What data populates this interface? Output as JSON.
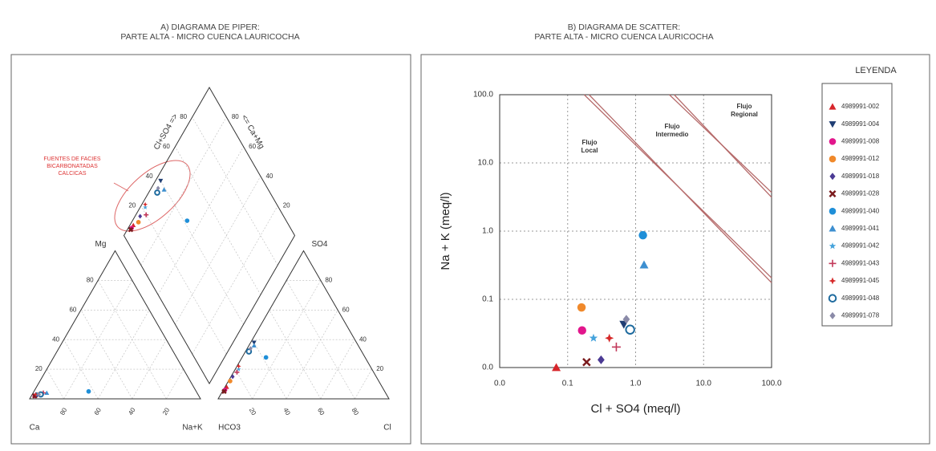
{
  "legend": {
    "title": "LEYENDA",
    "entries": [
      {
        "name": "4989991-002",
        "color": "#d7262b",
        "marker": "triangle"
      },
      {
        "name": "4989991-004",
        "color": "#1f3d73",
        "marker": "triangle-down"
      },
      {
        "name": "4989991-008",
        "color": "#e2168c",
        "marker": "circle"
      },
      {
        "name": "4989991-012",
        "color": "#f0892b",
        "marker": "circle"
      },
      {
        "name": "4989991-018",
        "color": "#4b3a94",
        "marker": "diamond"
      },
      {
        "name": "4989991-028",
        "color": "#7b1b1d",
        "marker": "x"
      },
      {
        "name": "4989991-040",
        "color": "#1f8fd8",
        "marker": "circle"
      },
      {
        "name": "4989991-041",
        "color": "#3d8fd0",
        "marker": "triangle"
      },
      {
        "name": "4989991-042",
        "color": "#45a3dc",
        "marker": "star"
      },
      {
        "name": "4989991-043",
        "color": "#c2385a",
        "marker": "plus"
      },
      {
        "name": "4989991-045",
        "color": "#d62a2a",
        "marker": "star4"
      },
      {
        "name": "4989991-048",
        "color": "#1d6a9e",
        "marker": "open-circle"
      },
      {
        "name": "4989991-078",
        "color": "#8a8aa8",
        "marker": "diamond"
      }
    ]
  },
  "chart_data": [
    {
      "type": "piper",
      "title": [
        "A)  DIAGRAMA DE PIPER:",
        "PARTE ALTA - MICRO CUENCA LAURICOCHA"
      ],
      "labels": {
        "ca": "Ca",
        "nak": "Na+K",
        "mg": "Mg",
        "hco3": "HCO3",
        "cl": "Cl",
        "so4": "SO4",
        "clso4": "Cl+SO4 =>",
        "camg": "<= Ca+Mg"
      },
      "annotation": [
        "FUENTES DE FACIES",
        "BICARBONATADAS",
        "CALCICAS"
      ],
      "ticks": [
        20,
        40,
        60,
        80
      ],
      "grid": true,
      "mg": [
        2,
        3,
        2,
        3,
        2,
        2,
        5,
        4,
        3,
        4,
        3,
        3,
        3
      ],
      "nak": [
        2,
        3,
        2,
        4,
        3,
        2,
        32,
        8,
        3,
        6,
        2,
        5,
        4
      ],
      "so4": [
        8,
        38,
        6,
        12,
        15,
        5,
        28,
        36,
        20,
        18,
        22,
        32,
        34
      ],
      "cl": [
        1,
        2,
        1,
        1,
        1,
        1,
        14,
        3,
        2,
        2,
        1,
        2,
        2
      ]
    },
    {
      "type": "scatter",
      "title": [
        "B)  DIAGRAMA DE SCATTER:",
        "PARTE ALTA - MICRO CUENCA LAURICOCHA"
      ],
      "x_label": "Cl + SO4 (meq/l)",
      "y_label": "Na + K (meq/l)",
      "log_x": true,
      "log_y": true,
      "grid": true,
      "xlim": [
        0.01,
        100
      ],
      "ylim": [
        0.01,
        100
      ],
      "xticks": [
        {
          "value": 0.01,
          "label": "0.0"
        },
        0.1,
        {
          "value": 1,
          "label": "1.0"
        },
        {
          "value": 10,
          "label": "10.0"
        },
        {
          "value": 100,
          "label": "100.0"
        }
      ],
      "yticks": [
        {
          "value": 0.01,
          "label": "0.0"
        },
        0.1,
        {
          "value": 1,
          "label": "1.0"
        },
        {
          "value": 10,
          "label": "10.0"
        },
        {
          "value": 100,
          "label": "100.0"
        }
      ],
      "x": [
        0.068,
        0.67,
        0.163,
        0.16,
        0.31,
        0.19,
        1.28,
        1.33,
        0.24,
        0.52,
        0.41,
        0.83,
        0.73
      ],
      "y": [
        0.01,
        0.043,
        0.035,
        0.076,
        0.013,
        0.012,
        0.87,
        0.32,
        0.027,
        0.02,
        0.027,
        0.036,
        0.051
      ],
      "boundaries": [
        {
          "x": [
            0.19,
            100
          ],
          "y": [
            100,
            0.19
          ]
        },
        {
          "x": [
            3.4,
            100
          ],
          "y": [
            100,
            3.4
          ]
        }
      ],
      "boundary_color": "#b56a6a",
      "regions": [
        [
          "Flujo",
          "Local"
        ],
        [
          "Flujo",
          "Intermedio"
        ],
        [
          "Flujo",
          "Regional"
        ]
      ]
    }
  ]
}
